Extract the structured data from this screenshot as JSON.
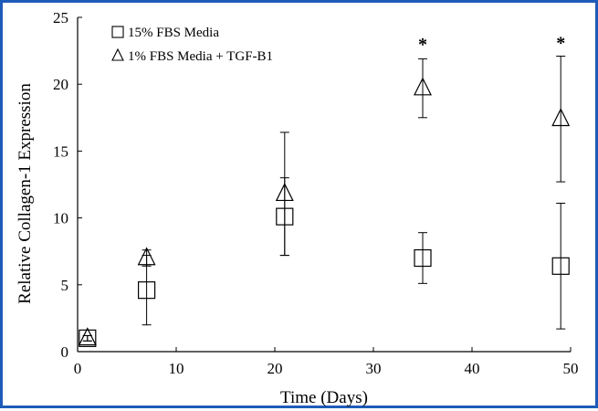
{
  "chart_data": {
    "type": "scatter",
    "title": "",
    "xlabel": "Time (Days)",
    "ylabel": "Relative Collagen-1 Expression",
    "xlim": [
      0,
      50
    ],
    "ylim": [
      0,
      25
    ],
    "x_ticks": [
      0,
      10,
      20,
      30,
      40,
      50
    ],
    "y_ticks": [
      0,
      5,
      10,
      15,
      20,
      25
    ],
    "x_tick_labels": [
      "0",
      "10",
      "20",
      "30",
      "40",
      "50"
    ],
    "y_tick_labels": [
      "0",
      "5",
      "10",
      "15",
      "20",
      "25"
    ],
    "grid": false,
    "legend_position": "top-left",
    "series": [
      {
        "name": "15% FBS Media",
        "marker": "square",
        "x": [
          1,
          7,
          21,
          35,
          49
        ],
        "y": [
          1.0,
          4.6,
          10.1,
          7.0,
          6.4
        ],
        "yerr": [
          0.2,
          2.6,
          2.9,
          1.9,
          4.7
        ]
      },
      {
        "name": "1% FBS Media + TGF-B1",
        "marker": "triangle",
        "x": [
          1,
          7,
          21,
          35,
          49
        ],
        "y": [
          1.0,
          7.0,
          11.8,
          19.7,
          17.4
        ],
        "yerr": [
          0.2,
          0.6,
          4.6,
          2.2,
          4.7
        ]
      }
    ],
    "annotations": [
      {
        "text": "*",
        "x": 35,
        "y": 23.5
      },
      {
        "text": "*",
        "x": 49,
        "y": 23.6
      }
    ]
  }
}
